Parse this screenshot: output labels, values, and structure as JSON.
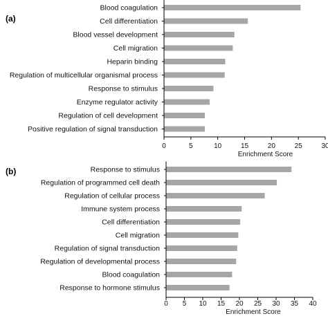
{
  "chart_data": [
    {
      "type": "bar",
      "orientation": "horizontal",
      "panel_label": "(a)",
      "categories": [
        "Blood coagulation",
        "Cell differentiation",
        "Blood vessel development",
        "Cell migration",
        "Heparin binding",
        "Regulation of multicellular organismal process",
        "Response to stimulus",
        "Enzyme regulator activity",
        "Regulation of cell development",
        "Positive regulation of signal transduction"
      ],
      "values": [
        25.4,
        15.6,
        13.1,
        12.8,
        11.4,
        11.3,
        9.2,
        8.5,
        7.6,
        7.6
      ],
      "xlabel": "Enrichment Score",
      "xlim": [
        0,
        30
      ],
      "xticks": [
        "0",
        "5",
        "10",
        "15",
        "20",
        "25",
        "30"
      ],
      "grid": false,
      "bar_color": "#a6a6a6"
    },
    {
      "type": "bar",
      "orientation": "horizontal",
      "panel_label": "(b)",
      "categories": [
        "Response to stimulus",
        "Regulation of programmed cell death",
        "Regulation of cellular process",
        "Immune system process",
        "Cell differentiation",
        "Cell migration",
        "Regulation of signal transduction",
        "Regulation of developmental process",
        "Blood coagulation",
        "Response to hormone stimulus"
      ],
      "values": [
        34.2,
        30.2,
        26.9,
        20.6,
        20.2,
        19.7,
        19.4,
        19.1,
        18.0,
        17.3
      ],
      "xlabel": "Enrichment Score",
      "xlim": [
        0,
        40
      ],
      "xticks": [
        "0",
        "5",
        "10",
        "15",
        "20",
        "25",
        "30",
        "35",
        "40"
      ],
      "grid": false,
      "bar_color": "#a6a6a6"
    }
  ]
}
